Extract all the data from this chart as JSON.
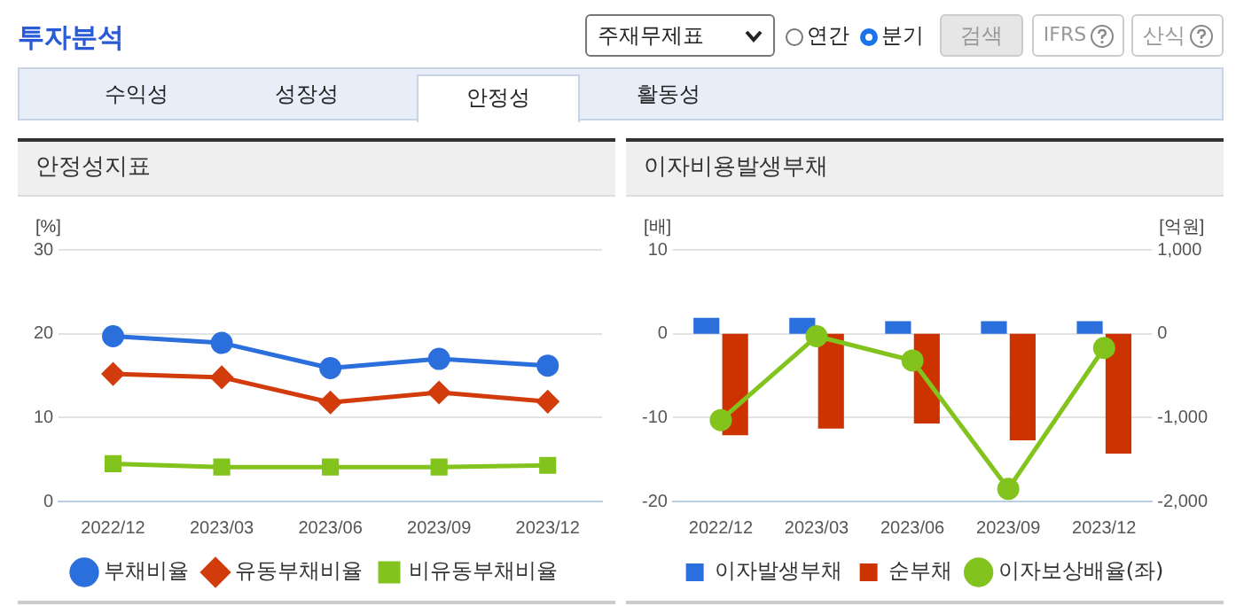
{
  "chart_data": [
    {
      "type": "other",
      "title": "투자분석",
      "annotations": [
        "주재무제표",
        "연간",
        "분기",
        "검색",
        "IFRS",
        "산식",
        "수익성",
        "성장성",
        "안정성",
        "활동성"
      ]
    },
    {
      "type": "line",
      "title": "안정성지표",
      "ylabel": "[%]",
      "categories": [
        "2022/12",
        "2023/03",
        "2023/06",
        "2023/09",
        "2023/12"
      ],
      "series": [
        {
          "name": "부채비율",
          "color": "#2a6fdb",
          "marker": "circle",
          "values": [
            19.7,
            18.9,
            15.9,
            17.0,
            16.2
          ]
        },
        {
          "name": "유동부채비율",
          "color": "#d23c0c",
          "marker": "diamond",
          "values": [
            15.2,
            14.8,
            11.8,
            13.0,
            11.9
          ]
        },
        {
          "name": "비유동부채비율",
          "color": "#82c31e",
          "marker": "square",
          "values": [
            4.5,
            4.1,
            4.1,
            4.1,
            4.3
          ]
        }
      ],
      "ylim": [
        0,
        30
      ],
      "yticks": [
        0,
        10,
        20,
        30
      ],
      "grid": "y",
      "legend": "bottom"
    },
    {
      "type": "bar",
      "title": "이자비용발생부채",
      "ylabel": "[배]",
      "y2label": "[억원]",
      "categories": [
        "2022/12",
        "2023/03",
        "2023/06",
        "2023/09",
        "2023/12"
      ],
      "series": [
        {
          "name": "이자발생부채",
          "color": "#2a6fdb",
          "axis": "y2",
          "values": [
            190,
            190,
            150,
            150,
            150
          ]
        },
        {
          "name": "순부채",
          "color": "#cc3300",
          "axis": "y2",
          "values": [
            -1210,
            -1130,
            -1070,
            -1270,
            -1430
          ]
        },
        {
          "name": "이자보상배율(좌)",
          "type": "line",
          "color": "#82c31e",
          "marker": "circle",
          "values": [
            -10.3,
            -0.3,
            -3.2,
            -18.5,
            -1.7
          ]
        }
      ],
      "ylim": [
        -20,
        10
      ],
      "yticks": [
        -20,
        -10,
        0,
        10
      ],
      "y2lim": [
        -2000,
        1000
      ],
      "y2ticks": [
        {
          "value": -2000,
          "label": "-2,000"
        },
        {
          "value": -1000,
          "label": "-1,000"
        },
        0,
        {
          "value": 1000,
          "label": "1,000"
        }
      ],
      "grid": "y",
      "legend": "bottom"
    }
  ]
}
